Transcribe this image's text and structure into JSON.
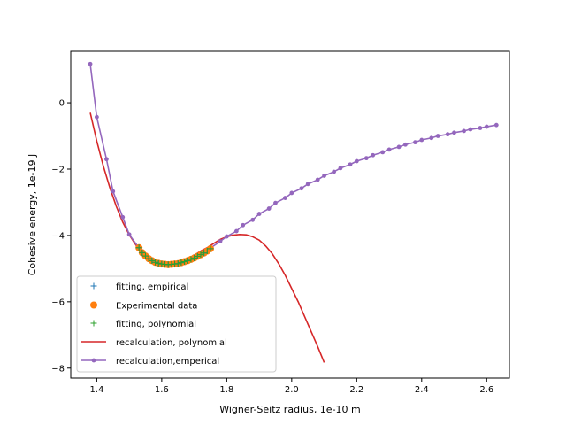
{
  "chart_data": {
    "type": "line",
    "title": "",
    "xlabel": "Wigner-Seitz radius, 1e-10 m",
    "ylabel": "Cohesive energy, 1e-19 J",
    "xlim": [
      1.32,
      2.67
    ],
    "ylim": [
      -8.3,
      1.55
    ],
    "xticks": [
      1.4,
      1.6,
      1.8,
      2.0,
      2.2,
      2.4,
      2.6
    ],
    "xtick_labels": [
      "1.4",
      "1.6",
      "1.8",
      "2.0",
      "2.2",
      "2.4",
      "2.6"
    ],
    "yticks": [
      0,
      -2,
      -4,
      -6,
      -8
    ],
    "ytick_labels": [
      "0",
      "−2",
      "−4",
      "−6",
      "−8"
    ],
    "grid": false,
    "legend_position": "lower-left",
    "colors": {
      "fitting_empirical": "#1f77b4",
      "experimental": "#ff7f0e",
      "fitting_polynomial": "#2ca02c",
      "recalc_polynomial": "#d62728",
      "recalc_empirical": "#9467bd"
    },
    "series": [
      {
        "name": "fitting, empirical",
        "kind": "marker-plus",
        "x": [
          1.53,
          1.54,
          1.55,
          1.56,
          1.57,
          1.58,
          1.59,
          1.6,
          1.61,
          1.62,
          1.63,
          1.64,
          1.65,
          1.66,
          1.67,
          1.68,
          1.69,
          1.7,
          1.71,
          1.72,
          1.73,
          1.74,
          1.75
        ],
        "y": [
          -4.37,
          -4.52,
          -4.62,
          -4.7,
          -4.76,
          -4.81,
          -4.84,
          -4.86,
          -4.87,
          -4.88,
          -4.87,
          -4.86,
          -4.85,
          -4.82,
          -4.79,
          -4.76,
          -4.72,
          -4.68,
          -4.63,
          -4.58,
          -4.53,
          -4.47,
          -4.4
        ]
      },
      {
        "name": "Experimental data",
        "kind": "marker-dot",
        "x": [
          1.53,
          1.54,
          1.55,
          1.56,
          1.57,
          1.58,
          1.59,
          1.6,
          1.61,
          1.62,
          1.63,
          1.64,
          1.65,
          1.66,
          1.67,
          1.68,
          1.69,
          1.7,
          1.71,
          1.72,
          1.73,
          1.74,
          1.75
        ],
        "y": [
          -4.37,
          -4.52,
          -4.62,
          -4.7,
          -4.76,
          -4.81,
          -4.84,
          -4.86,
          -4.87,
          -4.88,
          -4.87,
          -4.86,
          -4.85,
          -4.82,
          -4.79,
          -4.76,
          -4.72,
          -4.68,
          -4.63,
          -4.58,
          -4.53,
          -4.47,
          -4.4
        ]
      },
      {
        "name": "fitting, polynomial",
        "kind": "marker-plus",
        "x": [
          1.53,
          1.54,
          1.55,
          1.56,
          1.57,
          1.58,
          1.59,
          1.6,
          1.61,
          1.62,
          1.63,
          1.64,
          1.65,
          1.66,
          1.67,
          1.68,
          1.69,
          1.7,
          1.71,
          1.72,
          1.73,
          1.74,
          1.75
        ],
        "y": [
          -4.37,
          -4.52,
          -4.62,
          -4.7,
          -4.76,
          -4.81,
          -4.84,
          -4.86,
          -4.87,
          -4.88,
          -4.87,
          -4.86,
          -4.85,
          -4.82,
          -4.79,
          -4.76,
          -4.72,
          -4.68,
          -4.63,
          -4.58,
          -4.53,
          -4.47,
          -4.4
        ]
      },
      {
        "name": "recalculation, polynomial",
        "kind": "line",
        "x": [
          1.38,
          1.4,
          1.42,
          1.44,
          1.46,
          1.48,
          1.5,
          1.52,
          1.54,
          1.56,
          1.58,
          1.6,
          1.62,
          1.64,
          1.66,
          1.68,
          1.7,
          1.72,
          1.74,
          1.76,
          1.78,
          1.8,
          1.82,
          1.84,
          1.86,
          1.88,
          1.9,
          1.92,
          1.94,
          1.96,
          1.98,
          2.0,
          2.02,
          2.04,
          2.06,
          2.08,
          2.1
        ],
        "y": [
          -0.3,
          -1.15,
          -1.9,
          -2.55,
          -3.12,
          -3.6,
          -3.98,
          -4.28,
          -4.53,
          -4.7,
          -4.8,
          -4.86,
          -4.88,
          -4.86,
          -4.8,
          -4.7,
          -4.6,
          -4.47,
          -4.37,
          -4.24,
          -4.12,
          -4.04,
          -3.99,
          -3.97,
          -3.98,
          -4.04,
          -4.14,
          -4.32,
          -4.55,
          -4.85,
          -5.2,
          -5.6,
          -6.0,
          -6.45,
          -6.9,
          -7.35,
          -7.83
        ]
      },
      {
        "name": "recalculation,emperical",
        "kind": "line-dot",
        "x": [
          1.38,
          1.4,
          1.43,
          1.45,
          1.48,
          1.5,
          1.53,
          1.55,
          1.58,
          1.6,
          1.63,
          1.65,
          1.68,
          1.7,
          1.73,
          1.75,
          1.78,
          1.8,
          1.83,
          1.85,
          1.88,
          1.9,
          1.93,
          1.95,
          1.98,
          2.0,
          2.03,
          2.05,
          2.08,
          2.1,
          2.13,
          2.15,
          2.18,
          2.2,
          2.23,
          2.25,
          2.28,
          2.3,
          2.33,
          2.35,
          2.38,
          2.4,
          2.43,
          2.45,
          2.48,
          2.5,
          2.53,
          2.55,
          2.58,
          2.6,
          2.63
        ],
        "y": [
          1.17,
          -0.43,
          -1.7,
          -2.67,
          -3.45,
          -3.97,
          -4.38,
          -4.62,
          -4.8,
          -4.86,
          -4.87,
          -4.83,
          -4.74,
          -4.63,
          -4.48,
          -4.38,
          -4.18,
          -4.03,
          -3.87,
          -3.69,
          -3.53,
          -3.35,
          -3.19,
          -3.02,
          -2.87,
          -2.72,
          -2.58,
          -2.45,
          -2.32,
          -2.2,
          -2.08,
          -1.97,
          -1.86,
          -1.76,
          -1.67,
          -1.58,
          -1.49,
          -1.41,
          -1.33,
          -1.26,
          -1.19,
          -1.12,
          -1.06,
          -1.0,
          -0.95,
          -0.9,
          -0.85,
          -0.8,
          -0.76,
          -0.72,
          -0.67
        ]
      }
    ]
  }
}
